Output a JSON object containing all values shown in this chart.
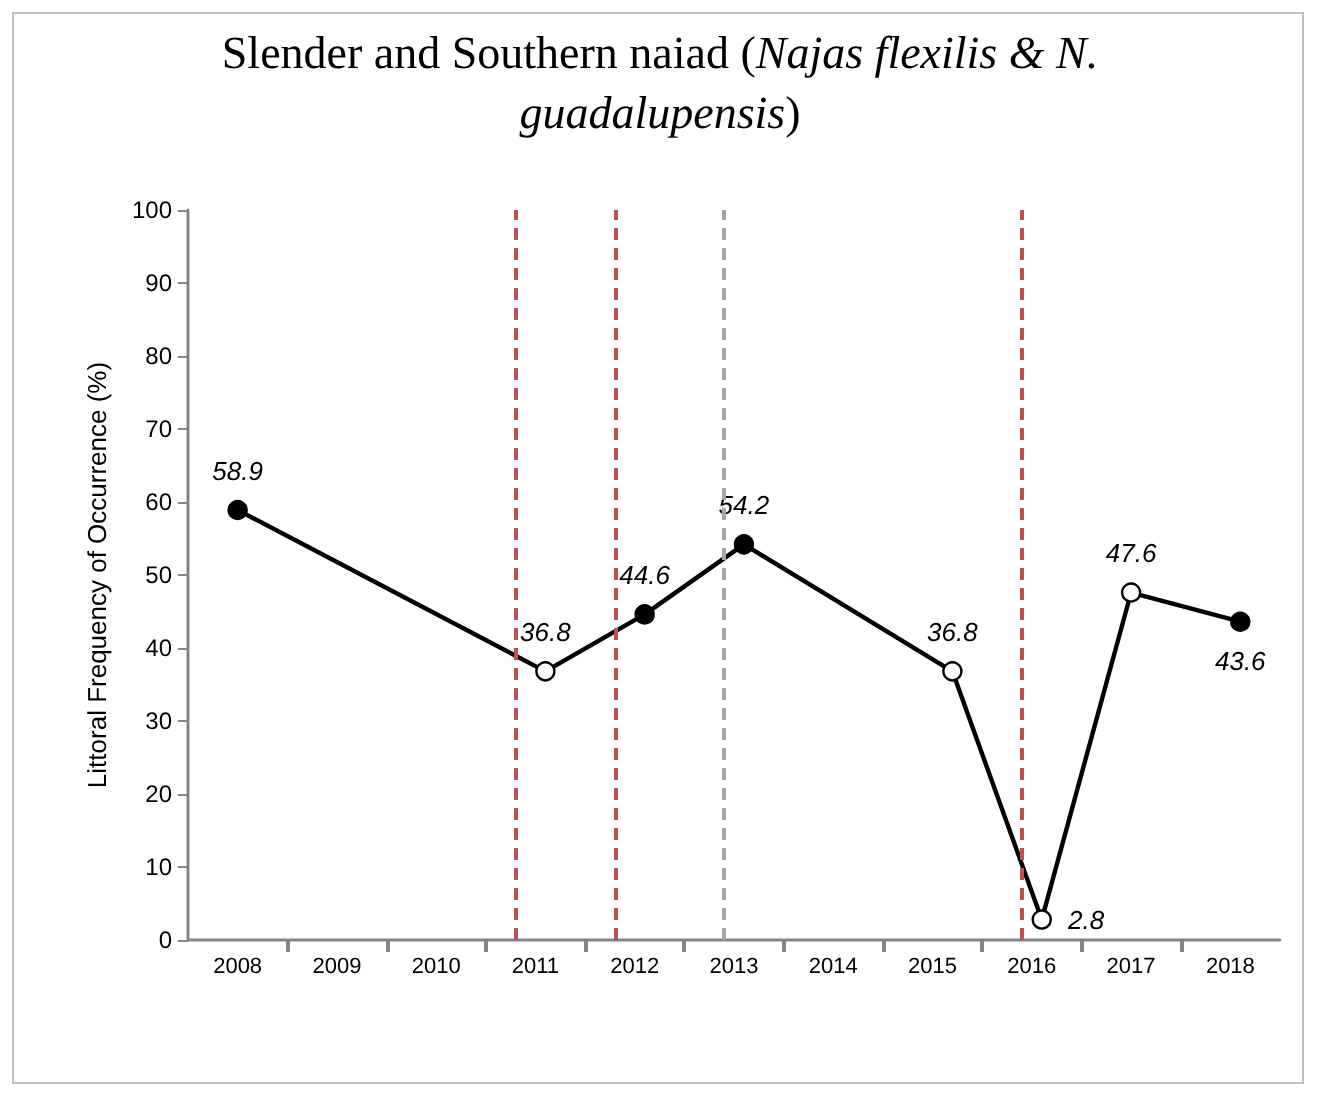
{
  "chart_data": {
    "type": "line",
    "title": "Slender and Southern naiad (Najas flexilis & N. guadalupensis)",
    "ylabel": "Littoral Frequency of Occurrence (%)",
    "x": [
      2008.5,
      2011.6,
      2012.6,
      2013.6,
      2015.7,
      2016.6,
      2017.5,
      2018.6
    ],
    "series": [
      {
        "color": "#000000",
        "values": [
          58.9,
          36.8,
          44.6,
          54.2,
          36.8,
          2.8,
          47.6,
          43.6
        ],
        "colors": [
          "#000000",
          "#ffffff",
          "#000000",
          "#000000",
          "#ffffff",
          "#ffffff",
          "#ffffff",
          "#000000"
        ]
      }
    ],
    "xlim": [
      2008,
      2019
    ],
    "xticks": [
      {
        "value": 2008.5,
        "label": "2008"
      },
      {
        "value": 2009,
        "label": null
      },
      {
        "value": 2009.5,
        "label": "2009"
      },
      {
        "value": 2010,
        "label": null
      },
      {
        "value": 2010.5,
        "label": "2010"
      },
      {
        "value": 2011,
        "label": null
      },
      {
        "value": 2011.5,
        "label": "2011"
      },
      {
        "value": 2012,
        "label": null
      },
      {
        "value": 2012.5,
        "label": "2012"
      },
      {
        "value": 2013,
        "label": null
      },
      {
        "value": 2013.5,
        "label": "2013"
      },
      {
        "value": 2014,
        "label": null
      },
      {
        "value": 2014.5,
        "label": "2014"
      },
      {
        "value": 2015,
        "label": null
      },
      {
        "value": 2015.5,
        "label": "2015"
      },
      {
        "value": 2016,
        "label": null
      },
      {
        "value": 2016.5,
        "label": "2016"
      },
      {
        "value": 2017,
        "label": null
      },
      {
        "value": 2017.5,
        "label": "2017"
      },
      {
        "value": 2018,
        "label": null
      },
      {
        "value": 2018.5,
        "label": "2018"
      }
    ],
    "ylim": [
      0,
      100
    ],
    "yticks": [
      0,
      10,
      20,
      30,
      40,
      50,
      60,
      70,
      80,
      90,
      100
    ],
    "ref_lines": [
      {
        "axis": "x",
        "value": 2011.3,
        "color": "#c0504d",
        "line_style": "dashed"
      },
      {
        "axis": "x",
        "value": 2012.3,
        "color": "#c0504d",
        "line_style": "dashed"
      },
      {
        "axis": "x",
        "value": 2013.4,
        "color": "#a6a6a6",
        "line_style": "dashed"
      },
      {
        "axis": "x",
        "value": 2016.4,
        "color": "#c0504d",
        "line_style": "dashed"
      }
    ],
    "data_labels": true,
    "marker": "circle",
    "line_style": "solid"
  }
}
